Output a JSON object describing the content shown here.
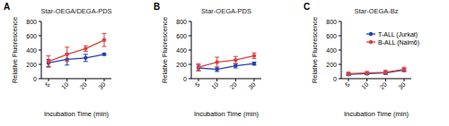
{
  "chart_data": [
    {
      "type": "line",
      "panel_label": "A",
      "title": "Star-OEGA/DEGA-PDS",
      "x_label": "Incubation Time (min)",
      "y_label": "Relative Fluorescence",
      "categories": [
        "5",
        "10",
        "20",
        "30"
      ],
      "ylim": [
        0,
        800
      ],
      "yticks": [
        0,
        200,
        400,
        600,
        800
      ],
      "legend": false,
      "marker": "circle",
      "series": [
        {
          "color": "#2140b8",
          "values": [
            220,
            270,
            290,
            340
          ],
          "errors": [
            50,
            80,
            50,
            10
          ]
        },
        {
          "color": "#d8413b",
          "values": [
            240,
            340,
            420,
            540
          ],
          "errors": [
            80,
            100,
            40,
            90
          ]
        }
      ]
    },
    {
      "type": "line",
      "panel_label": "B",
      "title": "Star-OEGA-PDS",
      "x_label": "Incubation Time (min)",
      "y_label": "Relative Fluorescence",
      "categories": [
        "5",
        "10",
        "20",
        "30"
      ],
      "ylim": [
        0,
        800
      ],
      "yticks": [
        0,
        200,
        400,
        600,
        800
      ],
      "legend": false,
      "marker": "circle",
      "series": [
        {
          "color": "#2140b8",
          "values": [
            150,
            130,
            180,
            210
          ],
          "errors": [
            40,
            30,
            30,
            20
          ]
        },
        {
          "color": "#d8413b",
          "values": [
            160,
            230,
            260,
            320
          ],
          "errors": [
            50,
            70,
            50,
            40
          ]
        }
      ]
    },
    {
      "type": "line",
      "panel_label": "C",
      "title": "Star-OEGA-Bz",
      "x_label": "Incubation Time (min)",
      "y_label": "Relative Fluorescence",
      "categories": [
        "5",
        "10",
        "20",
        "30"
      ],
      "ylim": [
        0,
        800
      ],
      "yticks": [
        0,
        200,
        400,
        600,
        800
      ],
      "legend": "upper right",
      "marker": "circle",
      "series": [
        {
          "name": "T-ALL (Jurkat)",
          "color": "#2140b8",
          "values": [
            60,
            70,
            80,
            120
          ],
          "errors": [
            15,
            15,
            20,
            20
          ]
        },
        {
          "name": "B-ALL (Nalm6)",
          "color": "#d8413b",
          "values": [
            70,
            80,
            90,
            130
          ],
          "errors": [
            20,
            20,
            25,
            30
          ]
        }
      ]
    }
  ]
}
